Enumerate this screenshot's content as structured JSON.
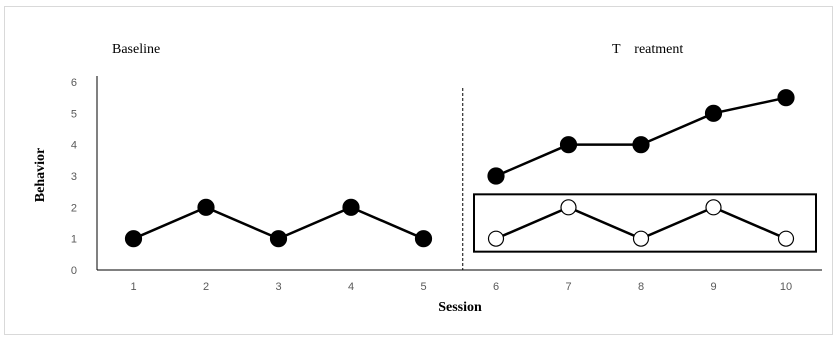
{
  "chart_data": {
    "type": "line",
    "xlabel": "Session",
    "ylabel": "Behavior",
    "x": [
      1,
      2,
      3,
      4,
      5,
      6,
      7,
      8,
      9,
      10
    ],
    "ylim": [
      0,
      6
    ],
    "yticks": [
      0,
      1,
      2,
      3,
      4,
      5,
      6
    ],
    "grid": false,
    "phases": [
      {
        "label": "Baseline",
        "start": 1,
        "end": 5
      },
      {
        "label": "T    reatment",
        "start": 6,
        "end": 10
      }
    ],
    "phase_change_after": 5,
    "series": [
      {
        "marker": "filled-circle",
        "segments": [
          {
            "x": [
              1,
              2,
              3,
              4,
              5
            ],
            "y": [
              1,
              2,
              1,
              2,
              1
            ]
          },
          {
            "x": [
              6,
              7,
              8,
              9,
              10
            ],
            "y": [
              3,
              4,
              4,
              5,
              5.5
            ]
          }
        ]
      },
      {
        "marker": "open-circle",
        "boxed": true,
        "segments": [
          {
            "x": [
              6,
              7,
              8,
              9,
              10
            ],
            "y": [
              1,
              2,
              1,
              2,
              1
            ]
          }
        ]
      }
    ],
    "colors": {
      "line": "#000000",
      "axis": "#000000",
      "tick_text": "#595959",
      "frame": "#d9d9d9"
    }
  }
}
